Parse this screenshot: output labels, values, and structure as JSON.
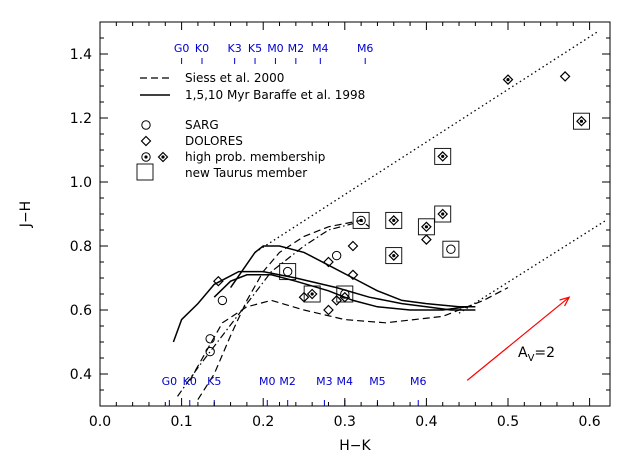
{
  "chart_data": {
    "type": "scatter",
    "xlabel": "H−K",
    "ylabel": "J−H",
    "xlim": [
      0.0,
      0.625
    ],
    "ylim": [
      0.3,
      1.5
    ],
    "x_ticks": [
      "0.0",
      "0.1",
      "0.2",
      "0.3",
      "0.4",
      "0.5",
      "0.6"
    ],
    "y_ticks": [
      "0.4",
      "0.6",
      "0.8",
      "1.0",
      "1.2",
      "1.4"
    ],
    "x_tick_values": [
      0.0,
      0.1,
      0.2,
      0.3,
      0.4,
      0.5,
      0.6
    ],
    "y_tick_values": [
      0.4,
      0.6,
      0.8,
      1.0,
      1.2,
      1.4
    ],
    "grid": false,
    "legend": {
      "position": "top-left",
      "entries": [
        {
          "label": "Siess et al. 2000",
          "marker": "dashed-line"
        },
        {
          "label": "1,5,10 Myr Baraffe et al. 1998",
          "marker": "solid-line"
        },
        {
          "label": "SARG",
          "marker": "circle"
        },
        {
          "label": "DOLORES",
          "marker": "diamond"
        },
        {
          "label": "high prob. membership",
          "marker": "dotted-circle-and-diamond"
        },
        {
          "label": "new Taurus member",
          "marker": "square"
        }
      ]
    },
    "spectral_types_top": {
      "labels": [
        "G0",
        "K0",
        "K3",
        "K5",
        "M0",
        "M2",
        "M4",
        "M6"
      ],
      "x": [
        0.1,
        0.125,
        0.165,
        0.19,
        0.215,
        0.24,
        0.27,
        0.325
      ],
      "color": "#0000cc"
    },
    "spectral_types_bottom": {
      "labels": [
        "G0",
        "K0",
        "K5",
        "M0",
        "M2",
        "M3",
        "M4",
        "M5",
        "M6"
      ],
      "x": [
        0.085,
        0.11,
        0.14,
        0.205,
        0.23,
        0.275,
        0.3,
        0.34,
        0.39
      ],
      "color": "#0000cc"
    },
    "sarg": [
      {
        "x": 0.135,
        "y": 0.51,
        "member": false,
        "new": false
      },
      {
        "x": 0.135,
        "y": 0.47,
        "member": false,
        "new": false
      },
      {
        "x": 0.15,
        "y": 0.63,
        "member": false,
        "new": false
      },
      {
        "x": 0.23,
        "y": 0.72,
        "member": false,
        "new": true
      },
      {
        "x": 0.29,
        "y": 0.77,
        "member": false,
        "new": false
      },
      {
        "x": 0.32,
        "y": 0.88,
        "member": true,
        "new": true
      },
      {
        "x": 0.43,
        "y": 0.79,
        "member": false,
        "new": true
      },
      {
        "x": 0.3,
        "y": 0.65,
        "member": false,
        "new": true
      }
    ],
    "dolores": [
      {
        "x": 0.145,
        "y": 0.69,
        "member": false,
        "new": false
      },
      {
        "x": 0.25,
        "y": 0.64,
        "member": false,
        "new": false
      },
      {
        "x": 0.26,
        "y": 0.65,
        "member": true,
        "new": true
      },
      {
        "x": 0.28,
        "y": 0.6,
        "member": false,
        "new": false
      },
      {
        "x": 0.29,
        "y": 0.63,
        "member": false,
        "new": false
      },
      {
        "x": 0.3,
        "y": 0.64,
        "member": false,
        "new": false
      },
      {
        "x": 0.28,
        "y": 0.75,
        "member": false,
        "new": false
      },
      {
        "x": 0.31,
        "y": 0.71,
        "member": false,
        "new": false
      },
      {
        "x": 0.31,
        "y": 0.8,
        "member": false,
        "new": false
      },
      {
        "x": 0.36,
        "y": 0.88,
        "member": true,
        "new": true
      },
      {
        "x": 0.36,
        "y": 0.77,
        "member": true,
        "new": true
      },
      {
        "x": 0.4,
        "y": 0.86,
        "member": true,
        "new": true
      },
      {
        "x": 0.4,
        "y": 0.82,
        "member": false,
        "new": false
      },
      {
        "x": 0.42,
        "y": 1.08,
        "member": true,
        "new": true
      },
      {
        "x": 0.42,
        "y": 0.9,
        "member": true,
        "new": true
      },
      {
        "x": 0.5,
        "y": 1.32,
        "member": true,
        "new": false
      },
      {
        "x": 0.57,
        "y": 1.33,
        "member": false,
        "new": false
      },
      {
        "x": 0.59,
        "y": 1.19,
        "member": true,
        "new": true
      }
    ],
    "siess_2000": [
      [
        [
          0.11,
          0.38
        ],
        [
          0.13,
          0.47
        ],
        [
          0.15,
          0.56
        ],
        [
          0.18,
          0.61
        ],
        [
          0.21,
          0.63
        ],
        [
          0.25,
          0.6
        ],
        [
          0.3,
          0.57
        ],
        [
          0.35,
          0.56
        ],
        [
          0.42,
          0.58
        ],
        [
          0.47,
          0.63
        ],
        [
          0.5,
          0.67
        ]
      ],
      [
        [
          0.12,
          0.32
        ],
        [
          0.14,
          0.4
        ],
        [
          0.16,
          0.52
        ],
        [
          0.18,
          0.63
        ],
        [
          0.2,
          0.72
        ],
        [
          0.22,
          0.78
        ],
        [
          0.25,
          0.83
        ],
        [
          0.28,
          0.86
        ],
        [
          0.3,
          0.87
        ],
        [
          0.32,
          0.88
        ],
        [
          0.33,
          0.86
        ]
      ]
    ],
    "dashdot_track": [
      [
        0.095,
        0.33
      ],
      [
        0.12,
        0.42
      ],
      [
        0.15,
        0.52
      ],
      [
        0.18,
        0.62
      ],
      [
        0.21,
        0.72
      ],
      [
        0.25,
        0.8
      ],
      [
        0.28,
        0.85
      ],
      [
        0.31,
        0.87
      ]
    ],
    "baraffe_1998": [
      [
        [
          0.09,
          0.5
        ],
        [
          0.1,
          0.57
        ],
        [
          0.12,
          0.62
        ],
        [
          0.14,
          0.68
        ],
        [
          0.17,
          0.72
        ],
        [
          0.2,
          0.72
        ],
        [
          0.24,
          0.7
        ],
        [
          0.29,
          0.67
        ],
        [
          0.33,
          0.64
        ],
        [
          0.37,
          0.62
        ],
        [
          0.4,
          0.61
        ],
        [
          0.43,
          0.6
        ],
        [
          0.46,
          0.6
        ]
      ],
      [
        [
          0.14,
          0.64
        ],
        [
          0.16,
          0.69
        ],
        [
          0.18,
          0.71
        ],
        [
          0.21,
          0.71
        ],
        [
          0.24,
          0.69
        ],
        [
          0.28,
          0.66
        ],
        [
          0.31,
          0.63
        ],
        [
          0.34,
          0.61
        ],
        [
          0.38,
          0.6
        ],
        [
          0.42,
          0.6
        ],
        [
          0.45,
          0.61
        ]
      ],
      [
        [
          0.16,
          0.67
        ],
        [
          0.19,
          0.78
        ],
        [
          0.2,
          0.8
        ],
        [
          0.22,
          0.8
        ],
        [
          0.25,
          0.78
        ],
        [
          0.28,
          0.74
        ],
        [
          0.31,
          0.7
        ],
        [
          0.34,
          0.66
        ],
        [
          0.37,
          0.63
        ],
        [
          0.4,
          0.62
        ],
        [
          0.44,
          0.61
        ],
        [
          0.46,
          0.61
        ]
      ]
    ],
    "dotted_reddening": [
      [
        [
          0.19,
          0.78
        ],
        [
          0.61,
          1.47
        ]
      ],
      [
        [
          0.44,
          0.59
        ],
        [
          0.62,
          0.88
        ]
      ]
    ],
    "reddening_vector": {
      "x1": 0.45,
      "y1": 0.38,
      "x2": 0.575,
      "y2": 0.64,
      "color": "#ff0000"
    },
    "reddening_label": {
      "text": "A",
      "subscript": "V",
      "suffix": "=2"
    }
  }
}
